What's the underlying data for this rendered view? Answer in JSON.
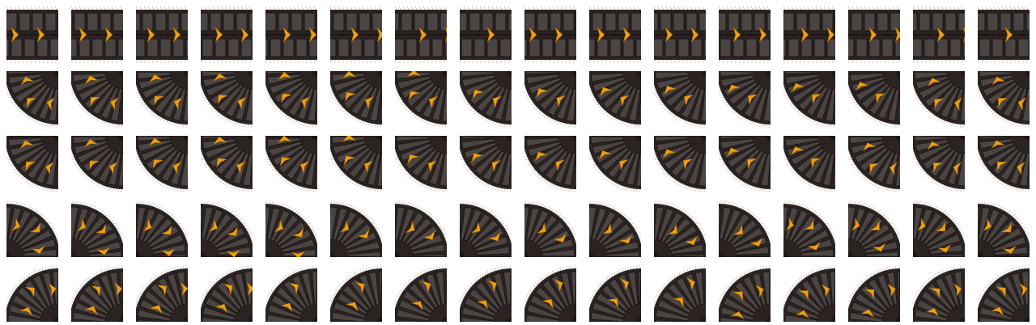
{
  "sprite_sheet": {
    "name": "tire-tread-sprite-sheet",
    "columns": 16,
    "rows": 5,
    "colors": {
      "background": "#ffffff",
      "tread_dark": "#2a2321",
      "tread_mid": "#4a4442",
      "tread_groove": "#1c1614",
      "tread_edge": "#6e6460",
      "fringe": "#8c827c",
      "chevron": "#f0a010",
      "chevron_shadow": "#b57306"
    },
    "rows_meta": [
      {
        "kind": "straight-tread",
        "orientation": "horizontal"
      },
      {
        "kind": "curved-tread",
        "orientation": "outer-bottom-left"
      },
      {
        "kind": "curved-tread",
        "orientation": "outer-bottom-left-alt"
      },
      {
        "kind": "curved-tread",
        "orientation": "outer-top-right"
      },
      {
        "kind": "curved-tread",
        "orientation": "outer-top-left"
      }
    ],
    "chevron_phase": [
      0,
      1,
      2,
      3,
      4,
      5,
      6,
      7,
      8,
      9,
      10,
      11,
      12,
      13,
      14,
      15
    ]
  }
}
